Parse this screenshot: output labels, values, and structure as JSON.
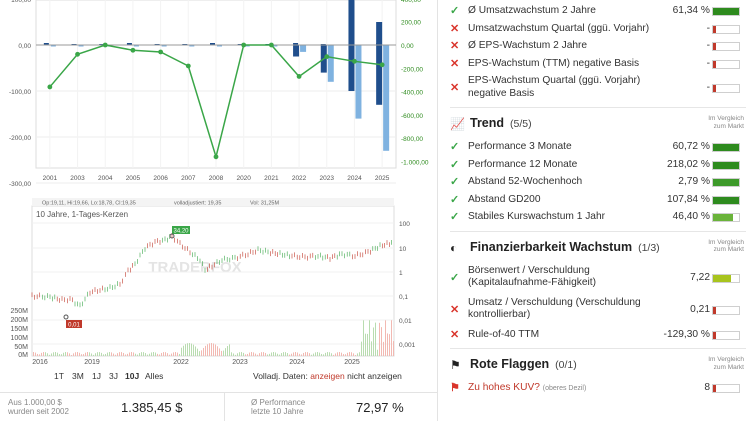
{
  "bar_chart": {
    "years": [
      "2001",
      "2003",
      "2004",
      "2005",
      "2006",
      "2007",
      "2008",
      "2020",
      "2021",
      "2022",
      "2023",
      "2024",
      "2025"
    ],
    "left_ticks": [
      "100,00",
      "0,00",
      "-100,00",
      "-200,00",
      "-300,00"
    ],
    "right_ticks": [
      "200,00",
      "0,00",
      "-200,00",
      "-400,00",
      "-600,00",
      "-800,00",
      "-1.000,00"
    ],
    "right_ticks_top": [
      "400,00"
    ],
    "eps_line": [
      -360,
      -80,
      0,
      -45,
      -60,
      -180,
      -960,
      0,
      0,
      -270,
      -100,
      -140,
      -170
    ],
    "bars_dark": [
      0,
      0,
      0,
      0,
      0,
      0,
      0,
      0,
      0,
      -25,
      -60,
      -100,
      -130
    ],
    "bars_light": [
      0,
      0,
      0,
      0,
      0,
      0,
      0,
      0,
      0,
      -15,
      -80,
      -160,
      -230
    ]
  },
  "candle_chart": {
    "legend": {
      "ohlc": "Op:19,11, Hi:19,66, Lo:18,78, Cl:19,35",
      "volladj": "volladjustiert: 19,35",
      "vol": "Vol: 31,25M"
    },
    "subtitle": "10 Jahre, 1-Tages-Kerzen",
    "max_label": "34,20",
    "min_label": "0,01",
    "x_labels": [
      "2016",
      "2019",
      "2022",
      "2023",
      "2024",
      "2025"
    ],
    "log_ticks": [
      "100",
      "10",
      "1",
      "0,1",
      "0,01",
      "0,001"
    ],
    "vol_ticks": [
      "250M",
      "200M",
      "150M",
      "100M",
      "50M",
      "0M"
    ],
    "watermark": "TRADERFOX"
  },
  "timeframes": [
    "1T",
    "3M",
    "1J",
    "3J",
    "10J",
    "Alles"
  ],
  "active_timeframe": "10J",
  "volladj": {
    "label": "Volladj. Daten:",
    "on": "anzeigen",
    "off": "nicht anzeigen"
  },
  "perf_bar": {
    "left_label_1": "Aus 1.000,00 $",
    "left_label_2": "wurden seit 2002",
    "left_value": "1.385,45 $",
    "right_label_1": "Ø Performance",
    "right_label_2": "letzte 10 Jahre",
    "right_value": "72,97 %"
  },
  "growth_rows": [
    {
      "status": "ok",
      "label": "Ø Umsatzwachstum 2 Jahre",
      "value": "61,34 %",
      "fill": 1.0,
      "color": "#2e8b1e"
    },
    {
      "status": "no",
      "label": "Umsatzwachstum Quartal (ggü. Vorjahr)",
      "value": "-",
      "fill": 0.12,
      "color": "#c0392b"
    },
    {
      "status": "no",
      "label": "Ø EPS-Wachstum 2 Jahre",
      "value": "-",
      "fill": 0.12,
      "color": "#c0392b"
    },
    {
      "status": "no",
      "label": "EPS-Wachstum (TTM) negative Basis",
      "value": "-",
      "fill": 0.12,
      "color": "#c0392b"
    },
    {
      "status": "no",
      "label": "EPS-Wachstum Quartal (ggü. Vorjahr)",
      "label2": "negative Basis",
      "value": "-",
      "fill": 0.12,
      "color": "#c0392b"
    }
  ],
  "trend": {
    "title": "Trend",
    "count": "(5/5)",
    "compare": [
      "Im Vergleich",
      "zum Markt"
    ],
    "rows": [
      {
        "status": "ok",
        "label": "Performance 3 Monate",
        "value": "60,72 %",
        "fill": 1.0,
        "color": "#2e8b1e"
      },
      {
        "status": "ok",
        "label": "Performance 12 Monate",
        "value": "218,02 %",
        "fill": 1.0,
        "color": "#2e8b1e"
      },
      {
        "status": "ok",
        "label": "Abstand 52-Wochenhoch",
        "value": "2,79 %",
        "fill": 1.0,
        "color": "#3d9a2a"
      },
      {
        "status": "ok",
        "label": "Abstand GD200",
        "value": "107,84 %",
        "fill": 1.0,
        "color": "#2e8b1e"
      },
      {
        "status": "ok",
        "label": "Stabiles Kurswachstum 1 Jahr",
        "value": "46,40 %",
        "fill": 0.78,
        "color": "#6ab33a"
      }
    ]
  },
  "finance": {
    "title": "Finanzierbarkeit Wachstum",
    "count": "(1/3)",
    "compare": [
      "Im Vergleich",
      "zum Markt"
    ],
    "rows": [
      {
        "status": "ok",
        "label": "Börsenwert / Verschuldung",
        "label2": "(Kapitalaufnahme-Fähigkeit)",
        "value": "7,22",
        "fill": 0.7,
        "color": "#a8c41e"
      },
      {
        "status": "no",
        "label": "Umsatz / Verschuldung (Verschuldung",
        "label2": "kontrollierbar)",
        "value": "0,21",
        "fill": 0.12,
        "color": "#c0392b"
      },
      {
        "status": "no",
        "label": "Rule-of-40 TTM",
        "value": "-129,30 %",
        "fill": 0.12,
        "color": "#c0392b"
      }
    ]
  },
  "flags": {
    "title": "Rote Flaggen",
    "count": "(0/1)",
    "compare": [
      "Im Vergleich",
      "zum Markt"
    ],
    "rows": [
      {
        "label": "Zu hohes KUV?",
        "sub": "(oberes Dezil)",
        "value": "8",
        "fill": 0.12,
        "color": "#c0392b"
      }
    ]
  }
}
